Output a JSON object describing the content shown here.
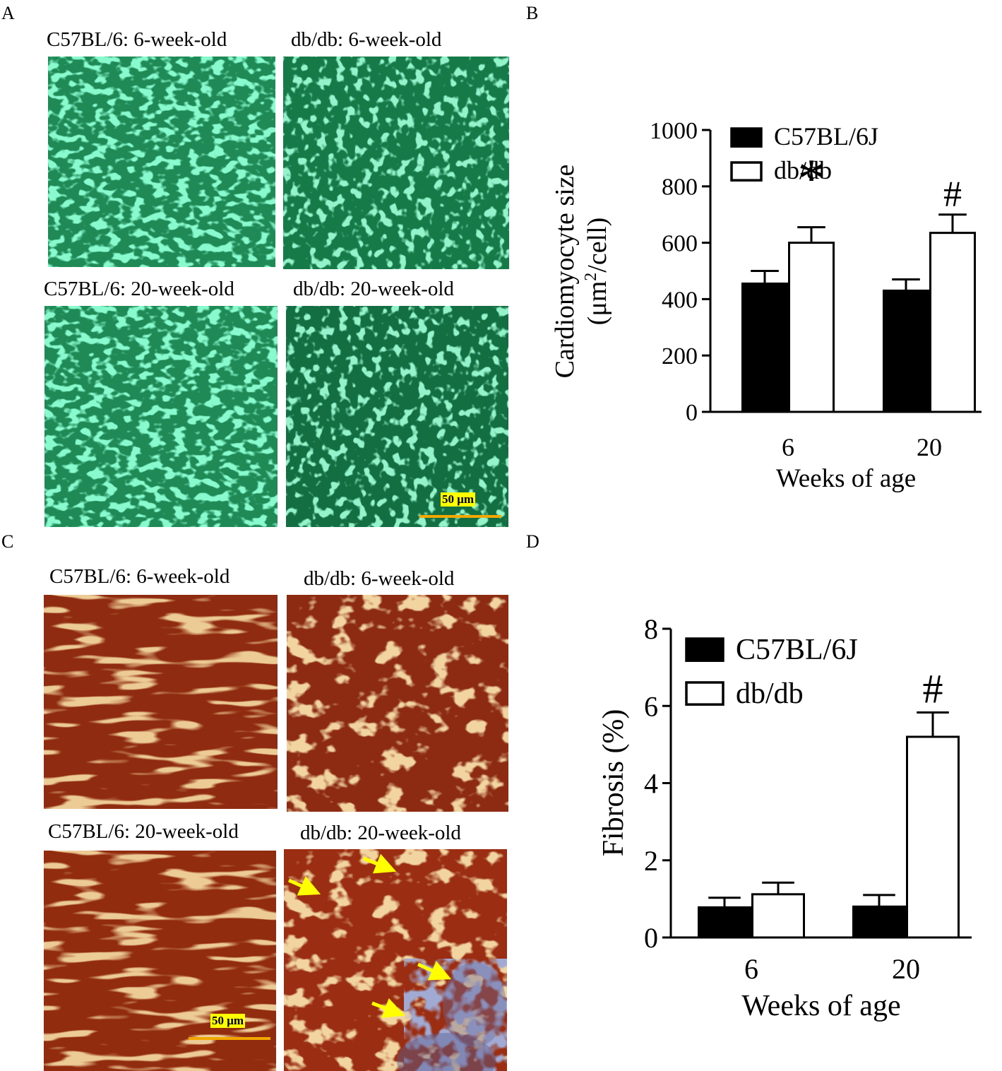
{
  "panels": {
    "a": {
      "letter": "A",
      "captions": [
        "C57BL/6: 6-week-old",
        "db/db: 6-week-old",
        "C57BL/6: 20-week-old",
        "db/db: 20-week-old"
      ],
      "scale_bar": "50 μm"
    },
    "b": {
      "letter": "B"
    },
    "c": {
      "letter": "C",
      "captions": [
        "C57BL/6: 6-week-old",
        "db/db: 6-week-old",
        "C57BL/6: 20-week-old",
        "db/db: 20-week-old"
      ],
      "scale_bar": "50 μm"
    },
    "d": {
      "letter": "D"
    }
  },
  "chart_data": [
    {
      "type": "bar",
      "panel": "B",
      "categories": [
        "6",
        "20"
      ],
      "xlabel": "Weeks of age",
      "ylabel": "Cardiomyocyte size",
      "ylabel_unit_prefix": "(μm",
      "ylabel_unit_sup": "2",
      "ylabel_unit_suffix": "/cell)",
      "ylim": [
        0,
        1000
      ],
      "yticks": [
        "0",
        "200",
        "400",
        "600",
        "800",
        "1000"
      ],
      "legend_position": "top-left",
      "series": [
        {
          "name": "C57BL/6J",
          "color": "#000000",
          "values": [
            455,
            430
          ],
          "errors": [
            45,
            40
          ]
        },
        {
          "name": "db/db",
          "color": "#ffffff",
          "values": [
            600,
            635
          ],
          "errors": [
            55,
            65
          ]
        }
      ],
      "annotations": [
        {
          "category": "6",
          "series": "db/db",
          "text": "*"
        },
        {
          "category": "20",
          "series": "db/db",
          "text": "#"
        }
      ]
    },
    {
      "type": "bar",
      "panel": "D",
      "categories": [
        "6",
        "20"
      ],
      "xlabel": "Weeks of age",
      "ylabel": "Fibrosis (%)",
      "ylim": [
        0,
        8
      ],
      "yticks": [
        "0",
        "2",
        "4",
        "6",
        "8"
      ],
      "legend_position": "top-left",
      "series": [
        {
          "name": "C57BL/6J",
          "color": "#000000",
          "values": [
            0.78,
            0.8
          ],
          "errors": [
            0.25,
            0.3
          ]
        },
        {
          "name": "db/db",
          "color": "#ffffff",
          "values": [
            1.12,
            5.2
          ],
          "errors": [
            0.3,
            0.63
          ]
        }
      ],
      "annotations": [
        {
          "category": "20",
          "series": "db/db",
          "text": "#"
        }
      ]
    }
  ]
}
